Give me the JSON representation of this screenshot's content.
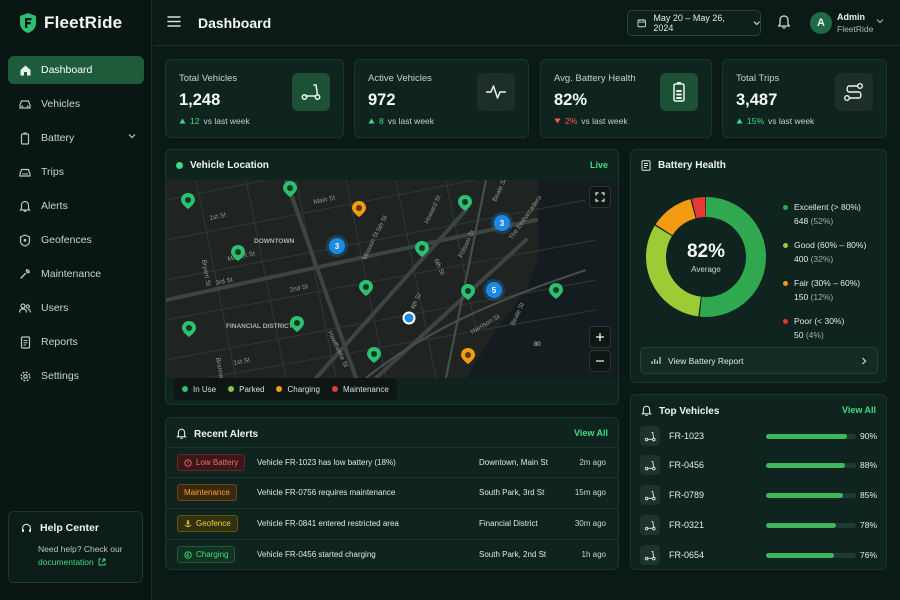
{
  "app": {
    "name": "FleetRide"
  },
  "header": {
    "title": "Dashboard",
    "date_range": "May 20 – May 26, 2024",
    "user": {
      "initial": "A",
      "name": "Admin",
      "role": "FleetRide"
    }
  },
  "sidebar": {
    "items": [
      {
        "label": "Dashboard",
        "icon": "home-icon",
        "active": true
      },
      {
        "label": "Vehicles",
        "icon": "car-icon"
      },
      {
        "label": "Battery",
        "icon": "battery-icon",
        "has_submenu": true
      },
      {
        "label": "Trips",
        "icon": "trip-icon"
      },
      {
        "label": "Alerts",
        "icon": "bell-icon"
      },
      {
        "label": "Geofences",
        "icon": "geofence-icon"
      },
      {
        "label": "Maintenance",
        "icon": "wrench-icon"
      },
      {
        "label": "Users",
        "icon": "users-icon"
      },
      {
        "label": "Reports",
        "icon": "report-icon"
      },
      {
        "label": "Settings",
        "icon": "gear-icon"
      }
    ],
    "help": {
      "title": "Help Center",
      "text": "Need help? Check our",
      "link": "documentation"
    }
  },
  "stats": [
    {
      "label": "Total Vehicles",
      "value": "1,248",
      "delta": "12",
      "direction": "up",
      "suffix": "vs last week",
      "icon": "scooter-icon"
    },
    {
      "label": "Active Vehicles",
      "value": "972",
      "delta": "8",
      "direction": "up",
      "suffix": "vs last week",
      "icon": "activity-icon"
    },
    {
      "label": "Avg. Battery Health",
      "value": "82%",
      "delta": "2%",
      "direction": "down",
      "suffix": "vs last week",
      "icon": "battery-icon"
    },
    {
      "label": "Total Trips",
      "value": "3,487",
      "delta": "15%",
      "direction": "up",
      "suffix": "vs last week",
      "icon": "route-icon"
    }
  ],
  "map": {
    "title": "Vehicle Location",
    "status": "Live",
    "street_labels": [
      "Main St",
      "1st St",
      "DOWNTOWN",
      "Market St",
      "3rd St",
      "2nd St",
      "Mission St",
      "Howard St",
      "Folsom St",
      "Harrison St",
      "4th St",
      "5th St",
      "6th St",
      "Beale St",
      "The Embarcadero",
      "FINANCIAL DISTRICT",
      "Bryant St",
      "Brannan St",
      "Hawthorne St",
      "80"
    ],
    "clusters": [
      "3",
      "3",
      "5"
    ],
    "legend": [
      {
        "label": "In Use",
        "color": "#2fbf71"
      },
      {
        "label": "Parked",
        "color": "#8bc34a"
      },
      {
        "label": "Charging",
        "color": "#f39c12"
      },
      {
        "label": "Maintenance",
        "color": "#e53935"
      }
    ]
  },
  "battery_health": {
    "title": "Battery Health",
    "center_value": "82%",
    "center_label": "Average",
    "segments": [
      {
        "label": "Excellent (> 80%)",
        "count": "648",
        "pct": "(52%)",
        "share": 52,
        "color": "#2fa84f"
      },
      {
        "label": "Good (60% – 80%)",
        "count": "400",
        "pct": "(32%)",
        "share": 32,
        "color": "#9ccc35"
      },
      {
        "label": "Fair (30% – 60%)",
        "count": "150",
        "pct": "(12%)",
        "share": 12,
        "color": "#f39c12"
      },
      {
        "label": "Poor (< 30%)",
        "count": "50",
        "pct": "(4%)",
        "share": 4,
        "color": "#e53935"
      }
    ],
    "report_button": "View Battery Report"
  },
  "alerts": {
    "title": "Recent Alerts",
    "action": "View All",
    "rows": [
      {
        "badge": "Low Battery",
        "kind": "low",
        "message": "Vehicle FR-1023 has low battery (18%)",
        "location": "Downtown, Main St",
        "time": "2m ago"
      },
      {
        "badge": "Maintenance",
        "kind": "maint",
        "message": "Vehicle FR-0756 requires maintenance",
        "location": "South Park, 3rd St",
        "time": "15m ago"
      },
      {
        "badge": "Geofence",
        "kind": "geo",
        "message": "Vehicle FR-0841 entered restricted area",
        "location": "Financial District",
        "time": "30m ago"
      },
      {
        "badge": "Charging",
        "kind": "charge",
        "message": "Vehicle FR-0456 started charging",
        "location": "South Park, 2nd St",
        "time": "1h ago"
      }
    ]
  },
  "top_vehicles": {
    "title": "Top Vehicles",
    "action": "View All",
    "rows": [
      {
        "id": "FR-1023",
        "pct": "90%",
        "value": 90
      },
      {
        "id": "FR-0456",
        "pct": "88%",
        "value": 88
      },
      {
        "id": "FR-0789",
        "pct": "85%",
        "value": 85
      },
      {
        "id": "FR-0321",
        "pct": "78%",
        "value": 78
      },
      {
        "id": "FR-0654",
        "pct": "76%",
        "value": 76
      }
    ]
  },
  "colors": {
    "accent": "#3ddc84",
    "active_nav": "#1e5b3b",
    "background": "#0b1a17",
    "card": "#10241f"
  }
}
